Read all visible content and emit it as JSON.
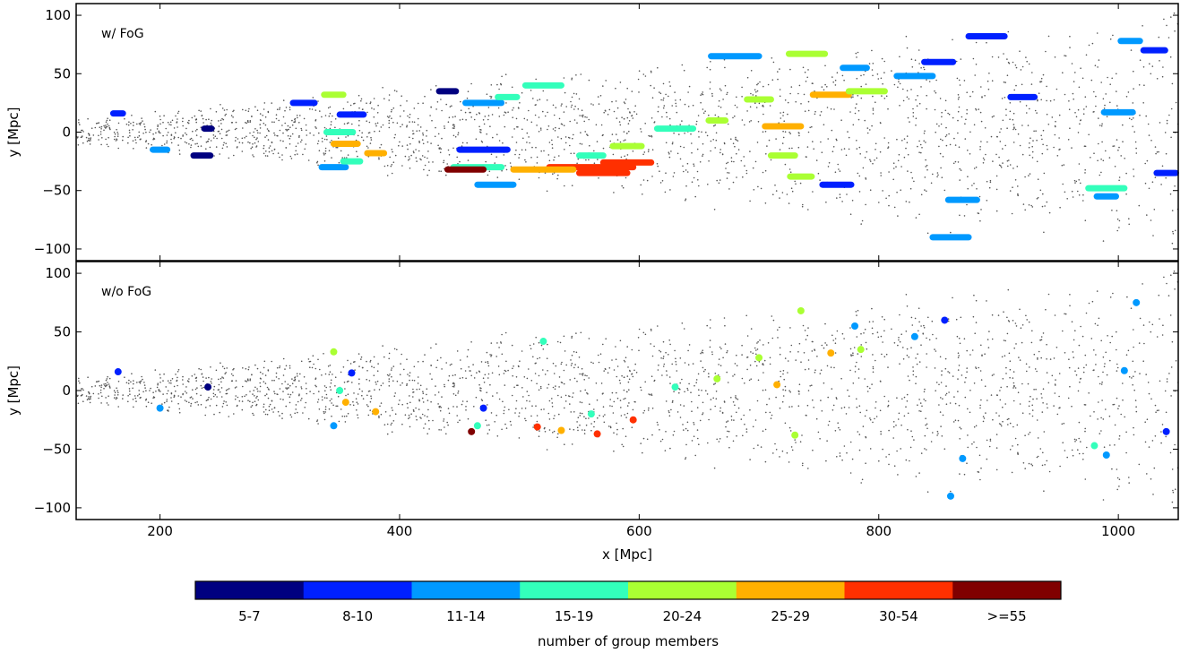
{
  "chart_data": [
    {
      "type": "scatter",
      "panel_label": "w/ FoG",
      "xlabel": "",
      "ylabel": "y [Mpc]",
      "xlim": [
        130,
        1050
      ],
      "ylim": [
        -110,
        110
      ],
      "xticks": [
        200,
        400,
        600,
        800,
        1000
      ],
      "yticks": [
        -100,
        -50,
        0,
        50,
        100
      ],
      "background_points": {
        "color": "#555555",
        "description_hidden": true
      },
      "groups": [
        {
          "x": 165,
          "y": 16,
          "bin": 1,
          "len": 8
        },
        {
          "x": 200,
          "y": -15,
          "bin": 2,
          "len": 12
        },
        {
          "x": 235,
          "y": -20,
          "bin": 0,
          "len": 14
        },
        {
          "x": 240,
          "y": 3,
          "bin": 0,
          "len": 6
        },
        {
          "x": 320,
          "y": 25,
          "bin": 1,
          "len": 18
        },
        {
          "x": 345,
          "y": 32,
          "bin": 4,
          "len": 16
        },
        {
          "x": 360,
          "y": 15,
          "bin": 1,
          "len": 20
        },
        {
          "x": 350,
          "y": 0,
          "bin": 3,
          "len": 22
        },
        {
          "x": 355,
          "y": -10,
          "bin": 5,
          "len": 20
        },
        {
          "x": 345,
          "y": -30,
          "bin": 2,
          "len": 20
        },
        {
          "x": 360,
          "y": -25,
          "bin": 3,
          "len": 14
        },
        {
          "x": 380,
          "y": -18,
          "bin": 5,
          "len": 14
        },
        {
          "x": 440,
          "y": 35,
          "bin": 0,
          "len": 14
        },
        {
          "x": 470,
          "y": -15,
          "bin": 1,
          "len": 40
        },
        {
          "x": 465,
          "y": -30,
          "bin": 3,
          "len": 40
        },
        {
          "x": 470,
          "y": 25,
          "bin": 2,
          "len": 30
        },
        {
          "x": 455,
          "y": -32,
          "bin": 7,
          "len": 30
        },
        {
          "x": 480,
          "y": -45,
          "bin": 2,
          "len": 30
        },
        {
          "x": 490,
          "y": 30,
          "bin": 3,
          "len": 16
        },
        {
          "x": 520,
          "y": 40,
          "bin": 3,
          "len": 30
        },
        {
          "x": 560,
          "y": -30,
          "bin": 6,
          "len": 70
        },
        {
          "x": 520,
          "y": -32,
          "bin": 5,
          "len": 50
        },
        {
          "x": 590,
          "y": -26,
          "bin": 6,
          "len": 40
        },
        {
          "x": 570,
          "y": -35,
          "bin": 6,
          "len": 40
        },
        {
          "x": 560,
          "y": -20,
          "bin": 3,
          "len": 20
        },
        {
          "x": 590,
          "y": -12,
          "bin": 4,
          "len": 24
        },
        {
          "x": 630,
          "y": 3,
          "bin": 3,
          "len": 30
        },
        {
          "x": 665,
          "y": 10,
          "bin": 4,
          "len": 14
        },
        {
          "x": 680,
          "y": 65,
          "bin": 2,
          "len": 40
        },
        {
          "x": 700,
          "y": 28,
          "bin": 4,
          "len": 20
        },
        {
          "x": 720,
          "y": 5,
          "bin": 5,
          "len": 30
        },
        {
          "x": 720,
          "y": -20,
          "bin": 4,
          "len": 20
        },
        {
          "x": 735,
          "y": -38,
          "bin": 4,
          "len": 18
        },
        {
          "x": 740,
          "y": 67,
          "bin": 4,
          "len": 30
        },
        {
          "x": 760,
          "y": 32,
          "bin": 5,
          "len": 30
        },
        {
          "x": 790,
          "y": 35,
          "bin": 4,
          "len": 30
        },
        {
          "x": 780,
          "y": 55,
          "bin": 2,
          "len": 20
        },
        {
          "x": 765,
          "y": -45,
          "bin": 1,
          "len": 24
        },
        {
          "x": 830,
          "y": 48,
          "bin": 2,
          "len": 30
        },
        {
          "x": 850,
          "y": 60,
          "bin": 1,
          "len": 24
        },
        {
          "x": 890,
          "y": 82,
          "bin": 1,
          "len": 30
        },
        {
          "x": 920,
          "y": 30,
          "bin": 1,
          "len": 20
        },
        {
          "x": 870,
          "y": -58,
          "bin": 2,
          "len": 24
        },
        {
          "x": 860,
          "y": -90,
          "bin": 2,
          "len": 30
        },
        {
          "x": 990,
          "y": -48,
          "bin": 3,
          "len": 30
        },
        {
          "x": 1000,
          "y": 17,
          "bin": 2,
          "len": 24
        },
        {
          "x": 1010,
          "y": 78,
          "bin": 2,
          "len": 16
        },
        {
          "x": 990,
          "y": -55,
          "bin": 2,
          "len": 16
        },
        {
          "x": 1030,
          "y": 70,
          "bin": 1,
          "len": 18
        },
        {
          "x": 1040,
          "y": -35,
          "bin": 1,
          "len": 16
        }
      ]
    },
    {
      "type": "scatter",
      "panel_label": "w/o FoG",
      "xlabel": "x [Mpc]",
      "ylabel": "y [Mpc]",
      "xlim": [
        130,
        1050
      ],
      "ylim": [
        -110,
        110
      ],
      "xticks": [
        200,
        400,
        600,
        800,
        1000
      ],
      "yticks": [
        -100,
        -50,
        0,
        50,
        100
      ],
      "groups": [
        {
          "x": 165,
          "y": 16,
          "bin": 1
        },
        {
          "x": 200,
          "y": -15,
          "bin": 2
        },
        {
          "x": 240,
          "y": 3,
          "bin": 0
        },
        {
          "x": 345,
          "y": 33,
          "bin": 4
        },
        {
          "x": 360,
          "y": 15,
          "bin": 1
        },
        {
          "x": 350,
          "y": 0,
          "bin": 3
        },
        {
          "x": 355,
          "y": -10,
          "bin": 5
        },
        {
          "x": 345,
          "y": -30,
          "bin": 2
        },
        {
          "x": 380,
          "y": -18,
          "bin": 5
        },
        {
          "x": 470,
          "y": -15,
          "bin": 1
        },
        {
          "x": 465,
          "y": -30,
          "bin": 3
        },
        {
          "x": 460,
          "y": -35,
          "bin": 7
        },
        {
          "x": 520,
          "y": 42,
          "bin": 3
        },
        {
          "x": 515,
          "y": -31,
          "bin": 6
        },
        {
          "x": 535,
          "y": -34,
          "bin": 5
        },
        {
          "x": 565,
          "y": -37,
          "bin": 6
        },
        {
          "x": 595,
          "y": -25,
          "bin": 6
        },
        {
          "x": 560,
          "y": -20,
          "bin": 3
        },
        {
          "x": 630,
          "y": 3,
          "bin": 3
        },
        {
          "x": 665,
          "y": 10,
          "bin": 4
        },
        {
          "x": 700,
          "y": 28,
          "bin": 4
        },
        {
          "x": 715,
          "y": 5,
          "bin": 5
        },
        {
          "x": 730,
          "y": -38,
          "bin": 4
        },
        {
          "x": 735,
          "y": 68,
          "bin": 4
        },
        {
          "x": 760,
          "y": 32,
          "bin": 5
        },
        {
          "x": 785,
          "y": 35,
          "bin": 4
        },
        {
          "x": 780,
          "y": 55,
          "bin": 2
        },
        {
          "x": 830,
          "y": 46,
          "bin": 2
        },
        {
          "x": 855,
          "y": 60,
          "bin": 1
        },
        {
          "x": 860,
          "y": -90,
          "bin": 2
        },
        {
          "x": 870,
          "y": -58,
          "bin": 2
        },
        {
          "x": 980,
          "y": -47,
          "bin": 3
        },
        {
          "x": 990,
          "y": -55,
          "bin": 2
        },
        {
          "x": 1005,
          "y": 17,
          "bin": 2
        },
        {
          "x": 1015,
          "y": 75,
          "bin": 2
        },
        {
          "x": 1040,
          "y": -35,
          "bin": 1
        }
      ]
    }
  ],
  "colorbar": {
    "label": "number of group members",
    "bins": [
      "5-7",
      "8-10",
      "11-14",
      "15-19",
      "20-24",
      "25-29",
      "30-54",
      ">=55"
    ],
    "colors": [
      "#000080",
      "#0020ff",
      "#0099ff",
      "#33ffbb",
      "#aaff33",
      "#ffb000",
      "#ff3000",
      "#800000"
    ]
  },
  "colors": {
    "background_points": "#555555",
    "frame": "#000000"
  }
}
